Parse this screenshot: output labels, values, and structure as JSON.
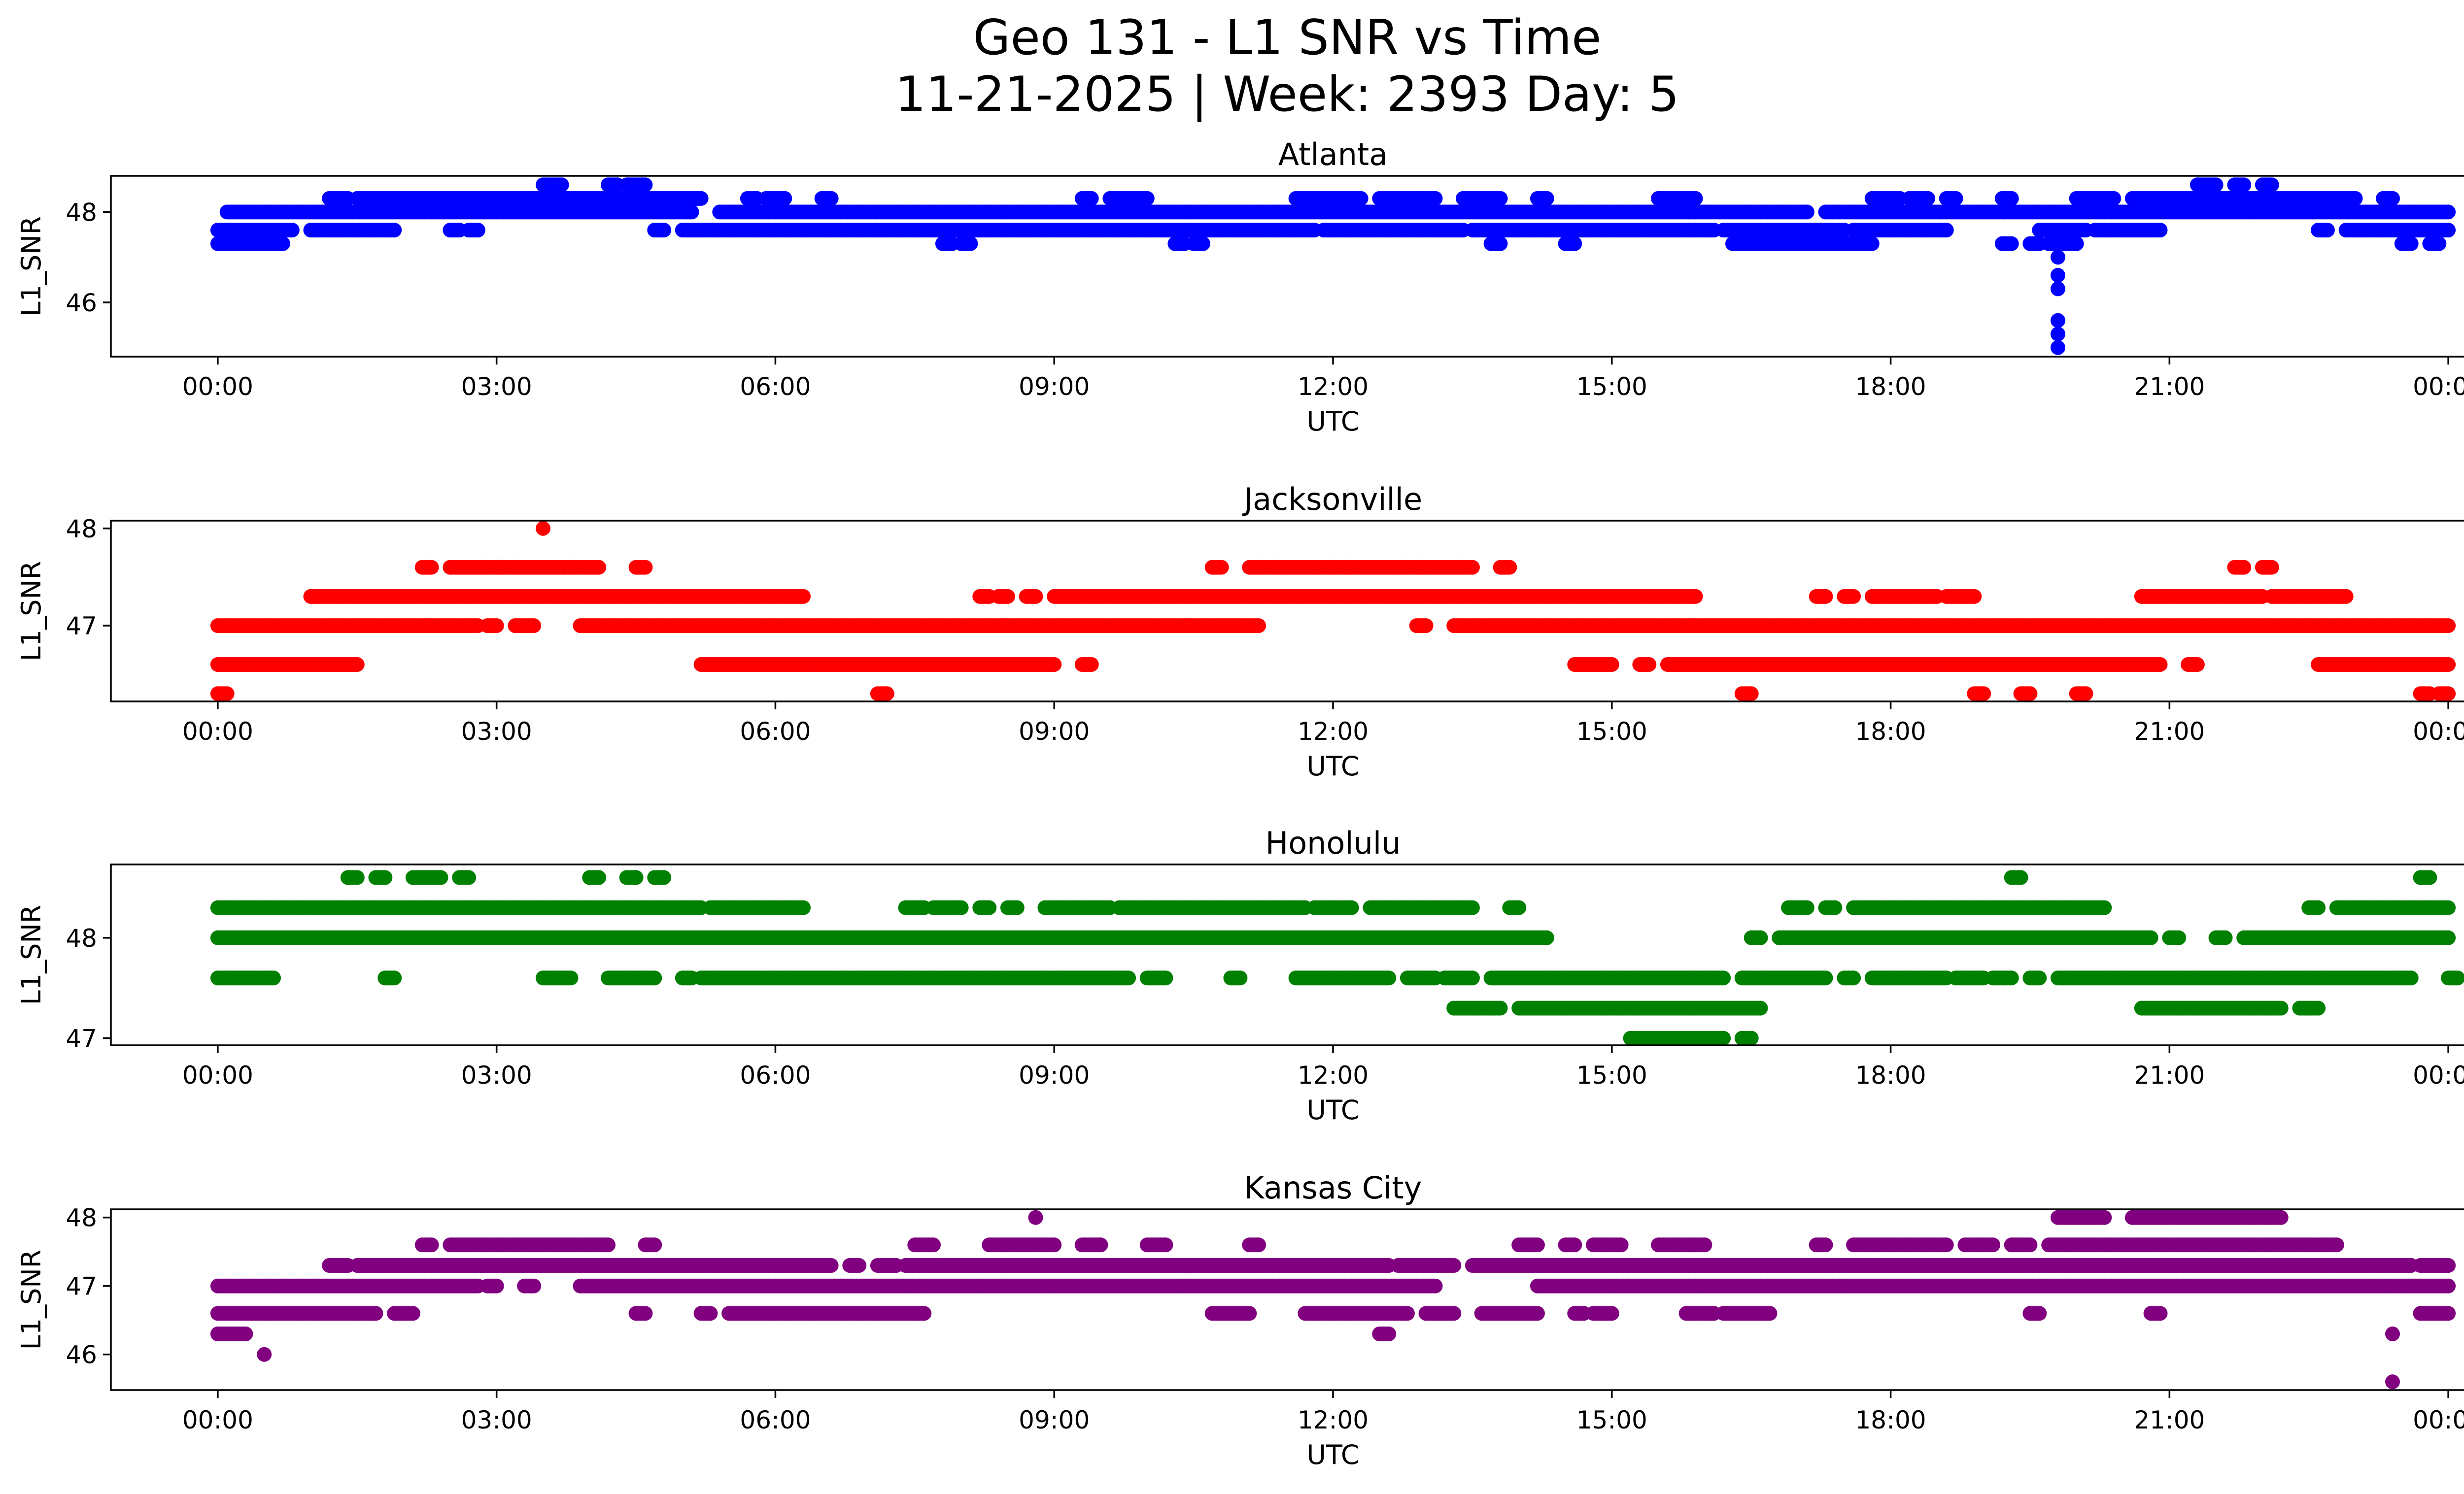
{
  "title_line1": "Geo 131 - L1 SNR vs Time",
  "title_line2": "11-21-2025 | Week: 2393 Day: 5",
  "chart_data": [
    {
      "type": "scatter",
      "title": "Atlanta",
      "xlabel": "UTC",
      "ylabel": "L1_SNR",
      "color": "#0000ff",
      "xlim_hours": [
        -1.15,
        25.15
      ],
      "ylim": [
        44.8,
        48.8
      ],
      "xticks": [
        "00:00",
        "03:00",
        "06:00",
        "09:00",
        "12:00",
        "15:00",
        "18:00",
        "21:00",
        "00:00"
      ],
      "yticks": [
        46,
        48
      ],
      "bands": [
        {
          "y": 48.0,
          "x": [
            [
              0.1,
              5.1
            ],
            [
              5.4,
              17.1
            ],
            [
              17.3,
              24.0
            ]
          ]
        },
        {
          "y": 47.6,
          "x": [
            [
              0.0,
              0.8
            ],
            [
              1.0,
              1.9
            ],
            [
              2.5,
              2.6
            ],
            [
              2.7,
              2.8
            ],
            [
              4.7,
              4.8
            ],
            [
              5.0,
              11.8
            ],
            [
              11.9,
              13.4
            ],
            [
              13.5,
              16.1
            ],
            [
              16.2,
              17.5
            ],
            [
              17.6,
              18.6
            ],
            [
              19.6,
              20.1
            ],
            [
              20.2,
              20.9
            ],
            [
              22.6,
              22.7
            ],
            [
              22.9,
              24.0
            ]
          ]
        },
        {
          "y": 48.3,
          "x": [
            [
              1.2,
              1.4
            ],
            [
              1.5,
              5.2
            ],
            [
              5.7,
              5.8
            ],
            [
              5.9,
              6.1
            ],
            [
              6.5,
              6.6
            ],
            [
              9.3,
              9.4
            ],
            [
              9.6,
              10.0
            ],
            [
              11.6,
              12.3
            ],
            [
              12.5,
              12.9
            ],
            [
              12.9,
              13.1
            ],
            [
              13.4,
              13.8
            ],
            [
              14.2,
              14.3
            ],
            [
              15.5,
              15.9
            ],
            [
              17.8,
              18.1
            ],
            [
              18.2,
              18.4
            ],
            [
              18.6,
              18.7
            ],
            [
              19.2,
              19.3
            ],
            [
              20.0,
              20.4
            ],
            [
              20.6,
              23.0
            ],
            [
              23.3,
              23.4
            ]
          ]
        },
        {
          "y": 47.3,
          "x": [
            [
              0.0,
              0.7
            ],
            [
              7.8,
              7.9
            ],
            [
              8.0,
              8.1
            ],
            [
              10.3,
              10.4
            ],
            [
              10.5,
              10.6
            ],
            [
              13.7,
              13.8
            ],
            [
              14.5,
              14.6
            ],
            [
              16.3,
              17.8
            ],
            [
              19.2,
              19.3
            ],
            [
              19.5,
              19.6
            ],
            [
              19.7,
              19.8
            ],
            [
              19.8,
              20.0
            ],
            [
              23.5,
              23.6
            ],
            [
              23.8,
              23.9
            ]
          ]
        },
        {
          "y": 48.6,
          "x": [
            [
              3.5,
              3.7
            ],
            [
              4.2,
              4.3
            ],
            [
              4.4,
              4.6
            ],
            [
              21.3,
              21.5
            ],
            [
              21.7,
              21.8
            ],
            [
              22.0,
              22.1
            ]
          ]
        }
      ],
      "points": [
        [
          19.8,
          47.0
        ],
        [
          19.8,
          46.6
        ],
        [
          19.8,
          46.3
        ],
        [
          19.8,
          45.6
        ],
        [
          19.8,
          45.3
        ],
        [
          19.8,
          45.0
        ]
      ]
    },
    {
      "type": "scatter",
      "title": "Jacksonville",
      "xlabel": "UTC",
      "ylabel": "L1_SNR",
      "color": "#ff0000",
      "xlim_hours": [
        -1.15,
        25.15
      ],
      "ylim": [
        46.22,
        48.08
      ],
      "xticks": [
        "00:00",
        "03:00",
        "06:00",
        "09:00",
        "12:00",
        "15:00",
        "18:00",
        "21:00",
        "00:00"
      ],
      "yticks": [
        47,
        48
      ],
      "bands": [
        {
          "y": 47.0,
          "x": [
            [
              0.0,
              2.8
            ],
            [
              2.9,
              3.0
            ],
            [
              3.2,
              3.4
            ],
            [
              3.9,
              11.2
            ],
            [
              12.9,
              13.0
            ],
            [
              13.3,
              24.0
            ]
          ]
        },
        {
          "y": 46.6,
          "x": [
            [
              0.0,
              1.5
            ],
            [
              5.2,
              9.0
            ],
            [
              9.3,
              9.4
            ],
            [
              14.6,
              15.0
            ],
            [
              15.3,
              15.4
            ],
            [
              15.6,
              20.9
            ],
            [
              21.2,
              21.3
            ],
            [
              22.6,
              24.0
            ]
          ]
        },
        {
          "y": 47.3,
          "x": [
            [
              1.0,
              6.3
            ],
            [
              8.2,
              8.3
            ],
            [
              8.4,
              8.5
            ],
            [
              8.7,
              8.8
            ],
            [
              9.0,
              15.9
            ],
            [
              17.2,
              17.3
            ],
            [
              17.5,
              17.6
            ],
            [
              17.8,
              18.5
            ],
            [
              18.6,
              18.9
            ],
            [
              20.7,
              22.0
            ],
            [
              22.1,
              22.9
            ]
          ]
        },
        {
          "y": 47.6,
          "x": [
            [
              2.2,
              2.3
            ],
            [
              2.5,
              4.1
            ],
            [
              4.5,
              4.6
            ],
            [
              10.7,
              10.8
            ],
            [
              11.1,
              13.5
            ],
            [
              13.8,
              13.9
            ],
            [
              21.7,
              21.8
            ],
            [
              22.0,
              22.1
            ]
          ]
        },
        {
          "y": 46.3,
          "x": [
            [
              0.0,
              0.1
            ],
            [
              7.1,
              7.2
            ],
            [
              16.4,
              16.5
            ],
            [
              18.9,
              19.0
            ],
            [
              19.4,
              19.5
            ],
            [
              20.0,
              20.1
            ],
            [
              23.7,
              23.8
            ],
            [
              23.9,
              24.0
            ]
          ]
        }
      ],
      "points": [
        [
          3.5,
          48.0
        ]
      ]
    },
    {
      "type": "scatter",
      "title": "Honolulu",
      "xlabel": "UTC",
      "ylabel": "L1_SNR",
      "color": "#008000",
      "xlim_hours": [
        -1.15,
        25.15
      ],
      "ylim": [
        46.93,
        48.73
      ],
      "xticks": [
        "00:00",
        "03:00",
        "06:00",
        "09:00",
        "12:00",
        "15:00",
        "18:00",
        "21:00",
        "00:00"
      ],
      "yticks": [
        47,
        48
      ],
      "bands": [
        {
          "y": 48.0,
          "x": [
            [
              0.0,
              13.4
            ],
            [
              13.4,
              14.3
            ],
            [
              16.5,
              16.6
            ],
            [
              16.8,
              20.8
            ],
            [
              21.0,
              21.1
            ],
            [
              21.5,
              21.6
            ],
            [
              21.8,
              24.0
            ]
          ]
        },
        {
          "y": 48.3,
          "x": [
            [
              0.0,
              5.2
            ],
            [
              5.3,
              6.3
            ],
            [
              7.4,
              7.6
            ],
            [
              7.7,
              8.0
            ],
            [
              8.2,
              8.3
            ],
            [
              8.5,
              8.6
            ],
            [
              8.9,
              9.6
            ],
            [
              9.7,
              11.7
            ],
            [
              11.8,
              12.2
            ],
            [
              12.4,
              13.5
            ],
            [
              13.9,
              14.0
            ],
            [
              16.9,
              17.1
            ],
            [
              17.3,
              17.4
            ],
            [
              17.6,
              20.3
            ],
            [
              22.5,
              22.6
            ],
            [
              22.8,
              24.0
            ]
          ]
        },
        {
          "y": 47.6,
          "x": [
            [
              0.0,
              0.6
            ],
            [
              1.8,
              1.9
            ],
            [
              3.5,
              3.8
            ],
            [
              4.2,
              4.7
            ],
            [
              5.0,
              5.1
            ],
            [
              5.2,
              9.8
            ],
            [
              10.0,
              10.2
            ],
            [
              10.9,
              11.0
            ],
            [
              11.6,
              12.6
            ],
            [
              12.8,
              13.1
            ],
            [
              13.2,
              13.5
            ],
            [
              13.7,
              16.2
            ],
            [
              16.4,
              17.3
            ],
            [
              17.5,
              17.6
            ],
            [
              17.8,
              18.6
            ],
            [
              18.7,
              19.0
            ],
            [
              19.1,
              19.3
            ],
            [
              19.5,
              19.6
            ],
            [
              19.8,
              23.6
            ],
            [
              24.0,
              24.1
            ]
          ]
        },
        {
          "y": 47.3,
          "x": [
            [
              13.3,
              13.8
            ],
            [
              14.0,
              16.6
            ],
            [
              20.7,
              22.2
            ],
            [
              22.4,
              22.6
            ]
          ]
        },
        {
          "y": 47.0,
          "x": [
            [
              15.2,
              16.2
            ],
            [
              16.4,
              16.5
            ]
          ]
        },
        {
          "y": 48.6,
          "x": [
            [
              1.4,
              1.5
            ],
            [
              1.7,
              1.8
            ],
            [
              2.1,
              2.4
            ],
            [
              2.6,
              2.7
            ],
            [
              4.0,
              4.1
            ],
            [
              4.4,
              4.5
            ],
            [
              4.7,
              4.8
            ],
            [
              19.3,
              19.4
            ],
            [
              23.7,
              23.8
            ]
          ]
        }
      ],
      "points": []
    },
    {
      "type": "scatter",
      "title": "Kansas City",
      "xlabel": "UTC",
      "ylabel": "L1_SNR",
      "color": "#800080",
      "xlim_hours": [
        -1.15,
        25.15
      ],
      "ylim": [
        45.48,
        48.12
      ],
      "xticks": [
        "00:00",
        "03:00",
        "06:00",
        "09:00",
        "12:00",
        "15:00",
        "18:00",
        "21:00",
        "00:00"
      ],
      "yticks": [
        46,
        47,
        48
      ],
      "bands": [
        {
          "y": 47.0,
          "x": [
            [
              0.0,
              2.8
            ],
            [
              2.9,
              3.0
            ],
            [
              3.3,
              3.4
            ],
            [
              3.9,
              13.1
            ],
            [
              14.2,
              24.0
            ]
          ]
        },
        {
          "y": 46.6,
          "x": [
            [
              0.0,
              1.7
            ],
            [
              1.9,
              2.1
            ],
            [
              4.5,
              4.6
            ],
            [
              5.2,
              5.3
            ],
            [
              5.5,
              7.6
            ],
            [
              10.7,
              11.1
            ],
            [
              11.7,
              12.8
            ],
            [
              13.0,
              13.3
            ],
            [
              13.6,
              14.2
            ],
            [
              14.6,
              14.7
            ],
            [
              14.8,
              15.0
            ],
            [
              15.8,
              16.1
            ],
            [
              16.2,
              16.7
            ],
            [
              19.5,
              19.6
            ],
            [
              20.8,
              20.9
            ],
            [
              23.7,
              24.0
            ]
          ]
        },
        {
          "y": 47.3,
          "x": [
            [
              1.2,
              1.4
            ],
            [
              1.5,
              6.6
            ],
            [
              6.8,
              6.9
            ],
            [
              7.1,
              7.3
            ],
            [
              7.4,
              12.6
            ],
            [
              12.7,
              13.3
            ],
            [
              13.5,
              23.6
            ],
            [
              23.7,
              24.0
            ]
          ]
        },
        {
          "y": 47.6,
          "x": [
            [
              2.2,
              2.3
            ],
            [
              2.5,
              4.2
            ],
            [
              4.6,
              4.7
            ],
            [
              7.5,
              7.7
            ],
            [
              8.3,
              9.0
            ],
            [
              9.3,
              9.5
            ],
            [
              10.0,
              10.2
            ],
            [
              11.1,
              11.2
            ],
            [
              14.0,
              14.2
            ],
            [
              14.5,
              14.6
            ],
            [
              14.8,
              15.1
            ],
            [
              15.5,
              16.0
            ],
            [
              17.2,
              17.3
            ],
            [
              17.6,
              18.6
            ],
            [
              18.8,
              19.1
            ],
            [
              19.3,
              19.5
            ],
            [
              19.7,
              22.8
            ]
          ]
        },
        {
          "y": 48.0,
          "x": [
            [
              19.8,
              20.3
            ],
            [
              20.6,
              22.2
            ]
          ]
        },
        {
          "y": 46.3,
          "x": [
            [
              0.0,
              0.3
            ],
            [
              12.5,
              12.6
            ]
          ]
        }
      ],
      "points": [
        [
          0.5,
          46.0
        ],
        [
          8.8,
          48.0
        ],
        [
          23.4,
          46.3
        ],
        [
          23.4,
          45.6
        ]
      ]
    }
  ]
}
